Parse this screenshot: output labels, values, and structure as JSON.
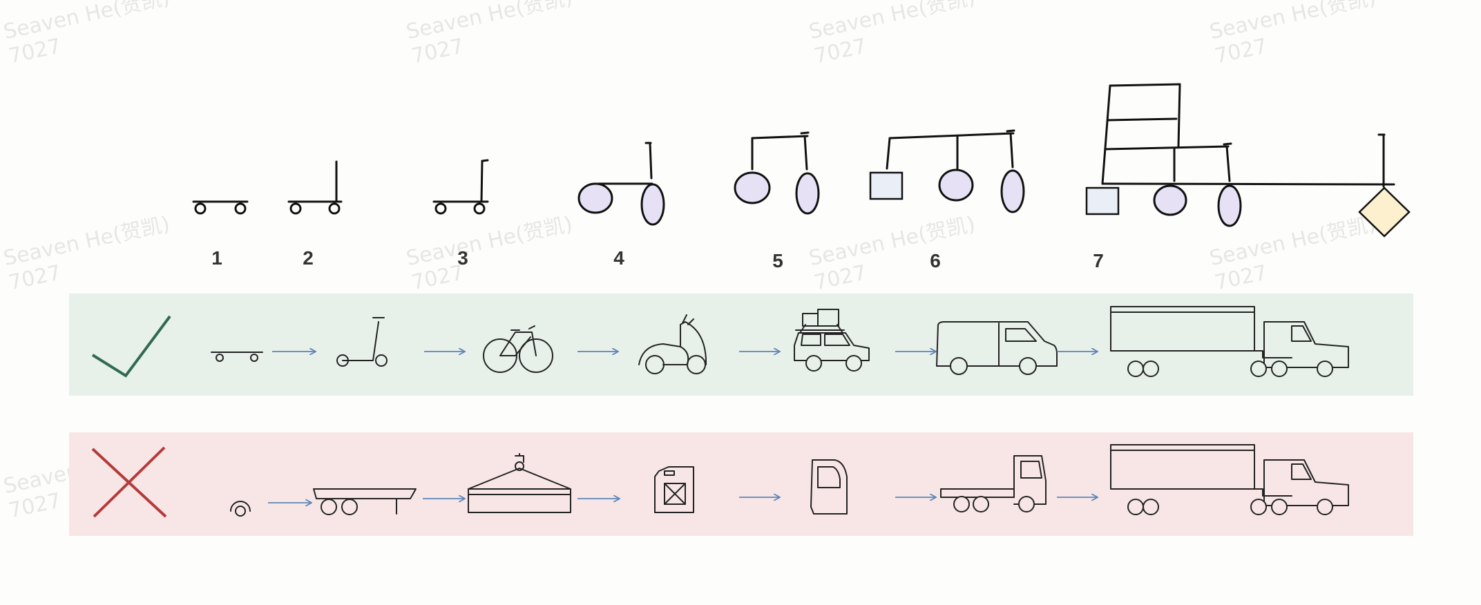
{
  "step_numbers": [
    "1",
    "2",
    "3",
    "4",
    "5",
    "6",
    "7"
  ],
  "watermark": {
    "line1": "Seaven He(贺凯)",
    "line2": "7027"
  },
  "rows": {
    "good": {
      "symbol": "check-mark",
      "background": "#e8f0ea",
      "mark_color": "#2f6b4f",
      "items": [
        "skateboard-icon",
        "kick-scooter-icon",
        "bicycle-icon",
        "motor-scooter-icon",
        "car-with-roof-luggage-icon",
        "delivery-van-icon",
        "semi-truck-icon"
      ]
    },
    "bad": {
      "symbol": "cross-mark",
      "background": "#f8e6e6",
      "mark_color": "#b53a3a",
      "items": [
        "wheel-icon",
        "trailer-chassis-icon",
        "crane-hook-cargo-icon",
        "fuel-jerry-can-icon",
        "truck-cab-door-icon",
        "cab-and-chassis-truck-icon",
        "semi-truck-icon"
      ]
    }
  },
  "colors": {
    "ellipse_fill": "#e6e1f5",
    "rect_fill": "#e9eef7",
    "diamond_fill": "#fdf0cf",
    "arrow": "#5b86b8",
    "line": "#111111"
  }
}
